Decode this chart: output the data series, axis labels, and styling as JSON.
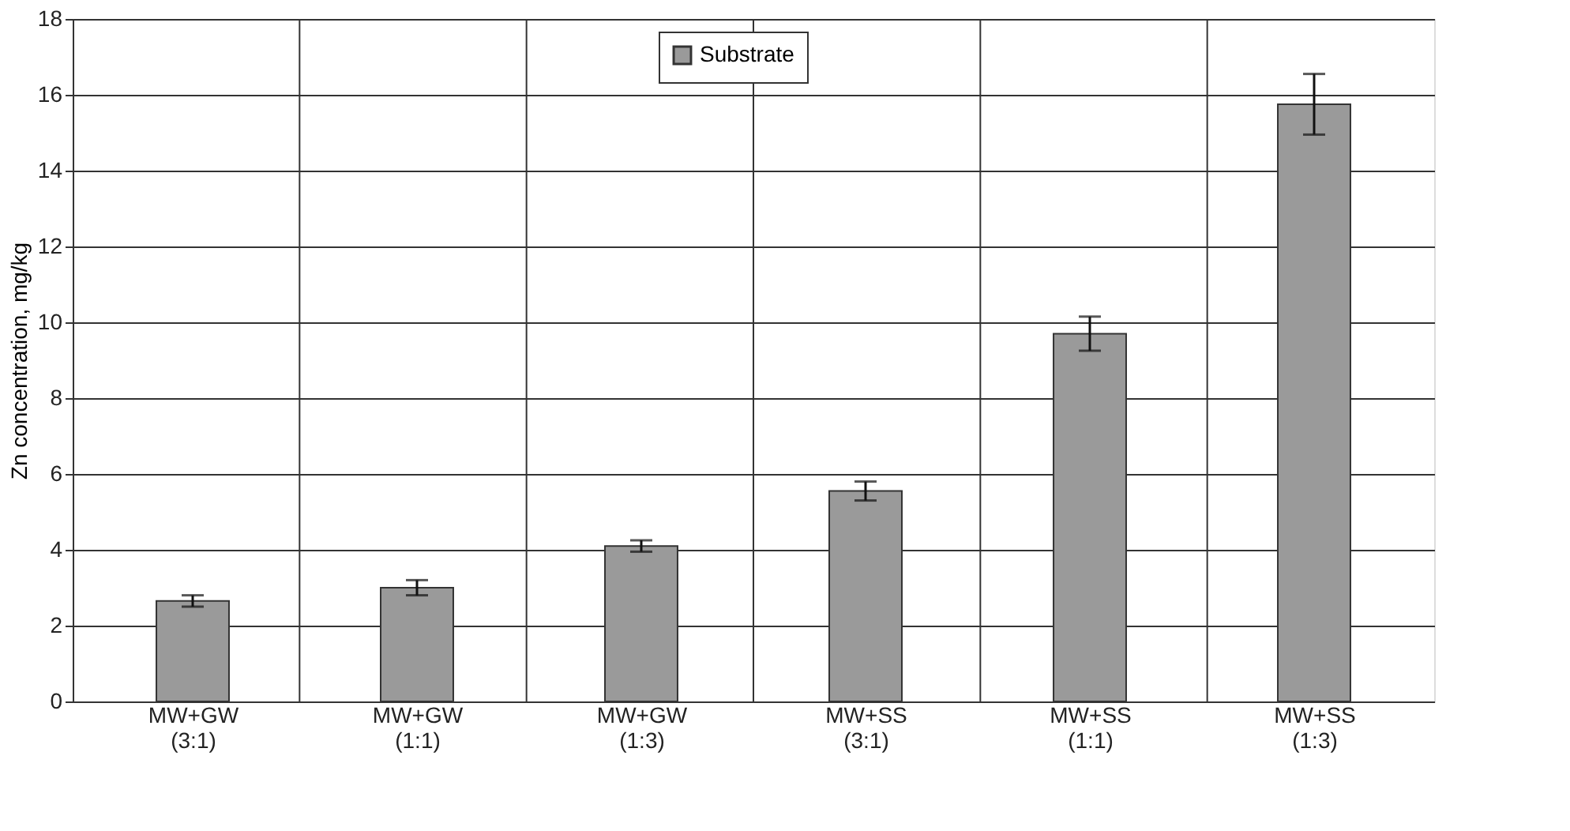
{
  "chart_data": {
    "type": "bar",
    "ylabel": "Zn concentration, mg/kg",
    "categories": [
      "MW+GW\n(3:1)",
      "MW+GW\n(1:1)",
      "MW+GW\n(1:3)",
      "MW+SS\n(3:1)",
      "MW+SS\n(1:1)",
      "MW+SS\n(1:3)"
    ],
    "series": [
      {
        "name": "Substrate",
        "color": "#9a9a9a",
        "values": [
          2.65,
          3.0,
          4.1,
          5.55,
          9.7,
          15.75
        ],
        "errors": [
          0.15,
          0.2,
          0.15,
          0.25,
          0.45,
          0.8
        ]
      }
    ],
    "ylim": [
      0,
      18
    ],
    "yticks": [
      0,
      2,
      4,
      6,
      8,
      10,
      12,
      14,
      16,
      18
    ],
    "grid": true,
    "legend": "top"
  }
}
